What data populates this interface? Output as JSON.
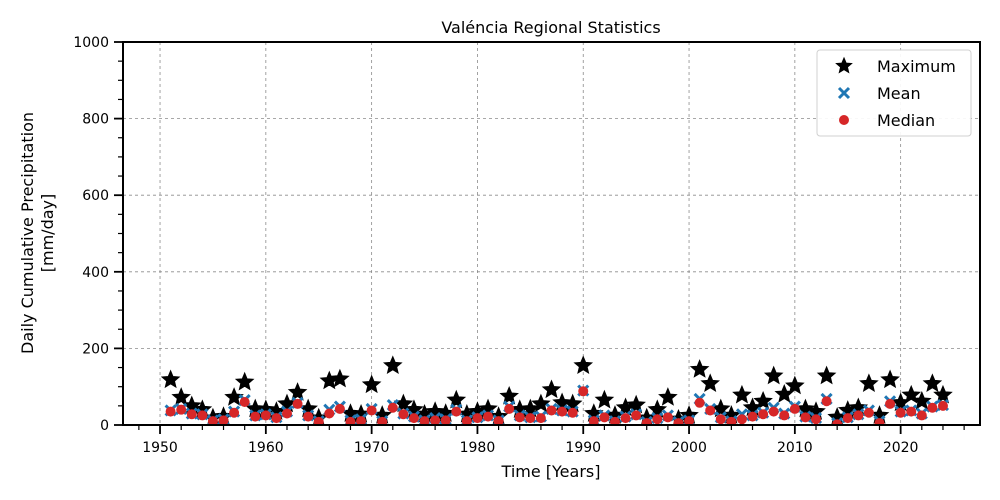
{
  "chart_data": {
    "type": "scatter",
    "title": "Valéncia Regional Statistics",
    "xlabel": "Time [Years]",
    "ylabel": "Daily Cumulative Precipitation [mm/day]",
    "ylabel_lines": [
      "Daily Cumulative Precipitation",
      "[mm/day]"
    ],
    "xlim": [
      1946.5,
      2027.5
    ],
    "ylim": [
      0,
      1000
    ],
    "x_major_ticks": [
      1950,
      1960,
      1970,
      1980,
      1990,
      2000,
      2010,
      2020
    ],
    "y_major_ticks": [
      0,
      200,
      400,
      600,
      800,
      1000
    ],
    "grid": true,
    "legend_position": "top-right",
    "x": [
      1951,
      1952,
      1953,
      1954,
      1955,
      1956,
      1957,
      1958,
      1959,
      1960,
      1961,
      1962,
      1963,
      1964,
      1965,
      1966,
      1967,
      1968,
      1969,
      1970,
      1971,
      1972,
      1973,
      1974,
      1975,
      1976,
      1977,
      1978,
      1979,
      1980,
      1981,
      1982,
      1983,
      1984,
      1985,
      1986,
      1987,
      1988,
      1989,
      1990,
      1991,
      1992,
      1993,
      1994,
      1995,
      1996,
      1997,
      1998,
      1999,
      2000,
      2001,
      2002,
      2003,
      2004,
      2005,
      2006,
      2007,
      2008,
      2009,
      2010,
      2011,
      2012,
      2013,
      2014,
      2015,
      2016,
      2017,
      2018,
      2019,
      2020,
      2021,
      2022,
      2023,
      2024
    ],
    "series": [
      {
        "name": "Maximum",
        "marker": "star",
        "color": "#000000",
        "values": [
          118,
          72,
          50,
          40,
          18,
          22,
          72,
          112,
          42,
          40,
          35,
          55,
          85,
          42,
          18,
          115,
          120,
          30,
          28,
          105,
          25,
          155,
          55,
          40,
          28,
          35,
          30,
          65,
          28,
          35,
          42,
          22,
          75,
          40,
          42,
          55,
          92,
          58,
          55,
          155,
          30,
          65,
          25,
          45,
          52,
          18,
          40,
          72,
          15,
          25,
          145,
          108,
          42,
          25,
          78,
          45,
          62,
          128,
          80,
          102,
          42,
          35,
          128,
          20,
          38,
          45,
          108,
          25,
          118,
          58,
          78,
          62,
          108,
          78
        ]
      },
      {
        "name": "Mean",
        "marker": "x",
        "color": "#1f77b4",
        "values": [
          38,
          42,
          30,
          28,
          12,
          15,
          35,
          65,
          25,
          28,
          20,
          35,
          58,
          25,
          10,
          40,
          48,
          12,
          15,
          42,
          10,
          52,
          30,
          22,
          12,
          18,
          15,
          40,
          12,
          20,
          25,
          12,
          48,
          25,
          20,
          22,
          42,
          38,
          35,
          90,
          12,
          25,
          10,
          22,
          28,
          8,
          18,
          25,
          8,
          12,
          68,
          42,
          20,
          10,
          28,
          25,
          32,
          45,
          30,
          48,
          22,
          18,
          68,
          5,
          20,
          28,
          38,
          10,
          62,
          35,
          38,
          30,
          48,
          52
        ]
      },
      {
        "name": "Median",
        "marker": "circle",
        "color": "#d62728",
        "values": [
          35,
          40,
          28,
          25,
          10,
          12,
          32,
          60,
          22,
          25,
          18,
          30,
          55,
          22,
          8,
          30,
          42,
          8,
          10,
          38,
          8,
          45,
          28,
          18,
          10,
          12,
          12,
          35,
          10,
          18,
          22,
          10,
          42,
          20,
          18,
          18,
          38,
          35,
          32,
          88,
          10,
          20,
          8,
          18,
          25,
          5,
          15,
          20,
          5,
          10,
          58,
          38,
          15,
          8,
          15,
          22,
          28,
          35,
          25,
          42,
          20,
          15,
          62,
          2,
          18,
          25,
          32,
          5,
          55,
          32,
          35,
          25,
          45,
          50
        ]
      }
    ]
  }
}
